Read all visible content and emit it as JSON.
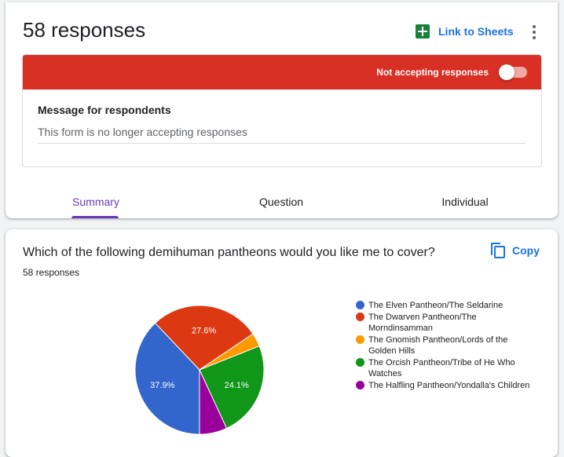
{
  "header": {
    "title": "58 responses",
    "link_sheets_label": "Link to Sheets",
    "accepting_label": "Not accepting responses",
    "message_label": "Message for respondents",
    "message_value": "This form is no longer accepting responses"
  },
  "tabs": [
    {
      "label": "Summary",
      "active": true
    },
    {
      "label": "Question",
      "active": false
    },
    {
      "label": "Individual",
      "active": false
    }
  ],
  "question": {
    "title": "Which of the following demihuman pantheons would you like me to cover?",
    "count": "58 responses",
    "copy_label": "Copy"
  },
  "chart_data": {
    "type": "pie",
    "slices": [
      {
        "label": "The Elven Pantheon/The Seldarine",
        "value": 37.9,
        "display": "37.9%",
        "color": "#3366cc"
      },
      {
        "label": "The Dwarven Pantheon/The Morndinsamman",
        "value": 27.6,
        "display": "27.6%",
        "color": "#dc3912"
      },
      {
        "label": "The Gnomish Pantheon/Lords of the Golden Hills",
        "value": 3.4,
        "display": "",
        "color": "#ff9900"
      },
      {
        "label": "The Orcish Pantheon/Tribe of He Who Watches",
        "value": 24.1,
        "display": "24.1%",
        "color": "#109618"
      },
      {
        "label": "The Halfling Pantheon/Yondalla's Children",
        "value": 6.9,
        "display": "",
        "color": "#990099"
      }
    ],
    "legend_position": "right"
  }
}
